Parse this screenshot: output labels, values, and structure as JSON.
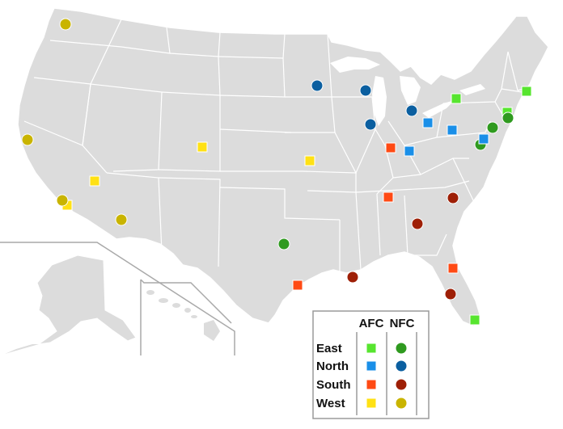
{
  "legend": {
    "col_afc": "AFC",
    "col_nfc": "NFC",
    "rows": [
      {
        "label": "East",
        "afc_color": "#57e52f",
        "nfc_color": "#2f9a1f"
      },
      {
        "label": "North",
        "afc_color": "#1a8fe8",
        "nfc_color": "#0b5fa0"
      },
      {
        "label": "South",
        "afc_color": "#ff4a14",
        "nfc_color": "#9e1f06"
      },
      {
        "label": "West",
        "afc_color": "#ffe114",
        "nfc_color": "#c9b400"
      }
    ]
  },
  "map": {
    "land_color": "#dcdcdc",
    "border_color": "#ffffff",
    "inset_line_color": "#a9a9a9",
    "marker_outline": "#ffffff"
  },
  "teams": [
    {
      "conf": "AFC",
      "div": "East",
      "shape": "square"
    },
    {
      "conf": "AFC",
      "div": "East",
      "shape": "square"
    },
    {
      "conf": "AFC",
      "div": "East",
      "shape": "square"
    },
    {
      "conf": "AFC",
      "div": "East",
      "shape": "square"
    },
    {
      "conf": "NFC",
      "div": "East",
      "shape": "circle"
    },
    {
      "conf": "NFC",
      "div": "East",
      "shape": "circle"
    },
    {
      "conf": "NFC",
      "div": "East",
      "shape": "circle"
    },
    {
      "conf": "NFC",
      "div": "East",
      "shape": "circle"
    },
    {
      "conf": "AFC",
      "div": "North",
      "shape": "square"
    },
    {
      "conf": "AFC",
      "div": "North",
      "shape": "square"
    },
    {
      "conf": "AFC",
      "div": "North",
      "shape": "square"
    },
    {
      "conf": "AFC",
      "div": "North",
      "shape": "square"
    },
    {
      "conf": "NFC",
      "div": "North",
      "shape": "circle"
    },
    {
      "conf": "NFC",
      "div": "North",
      "shape": "circle"
    },
    {
      "conf": "NFC",
      "div": "North",
      "shape": "circle"
    },
    {
      "conf": "NFC",
      "div": "North",
      "shape": "circle"
    },
    {
      "conf": "AFC",
      "div": "South",
      "shape": "square"
    },
    {
      "conf": "AFC",
      "div": "South",
      "shape": "square"
    },
    {
      "conf": "AFC",
      "div": "South",
      "shape": "square"
    },
    {
      "conf": "AFC",
      "div": "South",
      "shape": "square"
    },
    {
      "conf": "NFC",
      "div": "South",
      "shape": "circle"
    },
    {
      "conf": "NFC",
      "div": "South",
      "shape": "circle"
    },
    {
      "conf": "NFC",
      "div": "South",
      "shape": "circle"
    },
    {
      "conf": "NFC",
      "div": "South",
      "shape": "circle"
    },
    {
      "conf": "AFC",
      "div": "West",
      "shape": "square"
    },
    {
      "conf": "AFC",
      "div": "West",
      "shape": "square"
    },
    {
      "conf": "AFC",
      "div": "West",
      "shape": "square"
    },
    {
      "conf": "AFC",
      "div": "West",
      "shape": "square"
    },
    {
      "conf": "NFC",
      "div": "West",
      "shape": "circle"
    },
    {
      "conf": "NFC",
      "div": "West",
      "shape": "circle"
    },
    {
      "conf": "NFC",
      "div": "West",
      "shape": "circle"
    },
    {
      "conf": "NFC",
      "div": "West",
      "shape": "circle"
    }
  ]
}
